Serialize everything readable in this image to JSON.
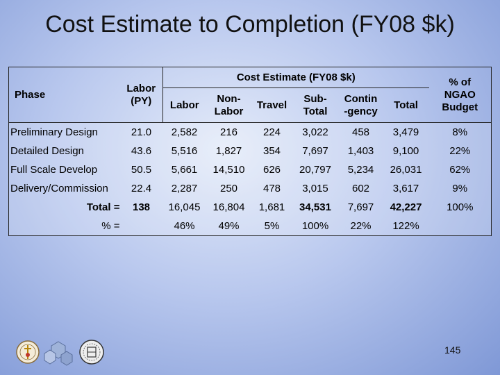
{
  "slide": {
    "title": "Cost Estimate to Completion (FY08 $k)",
    "page_number": "145"
  },
  "table": {
    "headers": {
      "phase": "Phase",
      "labor_py": [
        "Labor",
        "(PY)"
      ],
      "group": "Cost Estimate (FY08 $k)",
      "labor": "Labor",
      "non_labor": [
        "Non-",
        "Labor"
      ],
      "travel": "Travel",
      "sub_total": [
        "Sub-",
        "Total"
      ],
      "contingency": [
        "Contin",
        "-gency"
      ],
      "total": "Total",
      "pct_budget": [
        "% of",
        "NGAO",
        "Budget"
      ]
    },
    "rows": [
      [
        "Preliminary Design",
        "21.0",
        "2,582",
        "216",
        "224",
        "3,022",
        "458",
        "3,479",
        "8%"
      ],
      [
        "Detailed Design",
        "43.6",
        "5,516",
        "1,827",
        "354",
        "7,697",
        "1,403",
        "9,100",
        "22%"
      ],
      [
        "Full Scale Develop",
        "50.5",
        "5,661",
        "14,510",
        "626",
        "20,797",
        "5,234",
        "26,031",
        "62%"
      ],
      [
        "Delivery/Commission",
        "22.4",
        "2,287",
        "250",
        "478",
        "3,015",
        "602",
        "3,617",
        "9%"
      ]
    ],
    "total_row": [
      "Total =",
      "138",
      "16,045",
      "16,804",
      "1,681",
      "34,531",
      "7,697",
      "42,227",
      "100%"
    ],
    "percent_row": [
      "% =",
      "",
      "46%",
      "49%",
      "5%",
      "100%",
      "22%",
      "122%",
      ""
    ]
  },
  "logos": [
    "caltech-seal-icon",
    "keck-hexagon-mirror-icon",
    "uc-seal-icon"
  ]
}
